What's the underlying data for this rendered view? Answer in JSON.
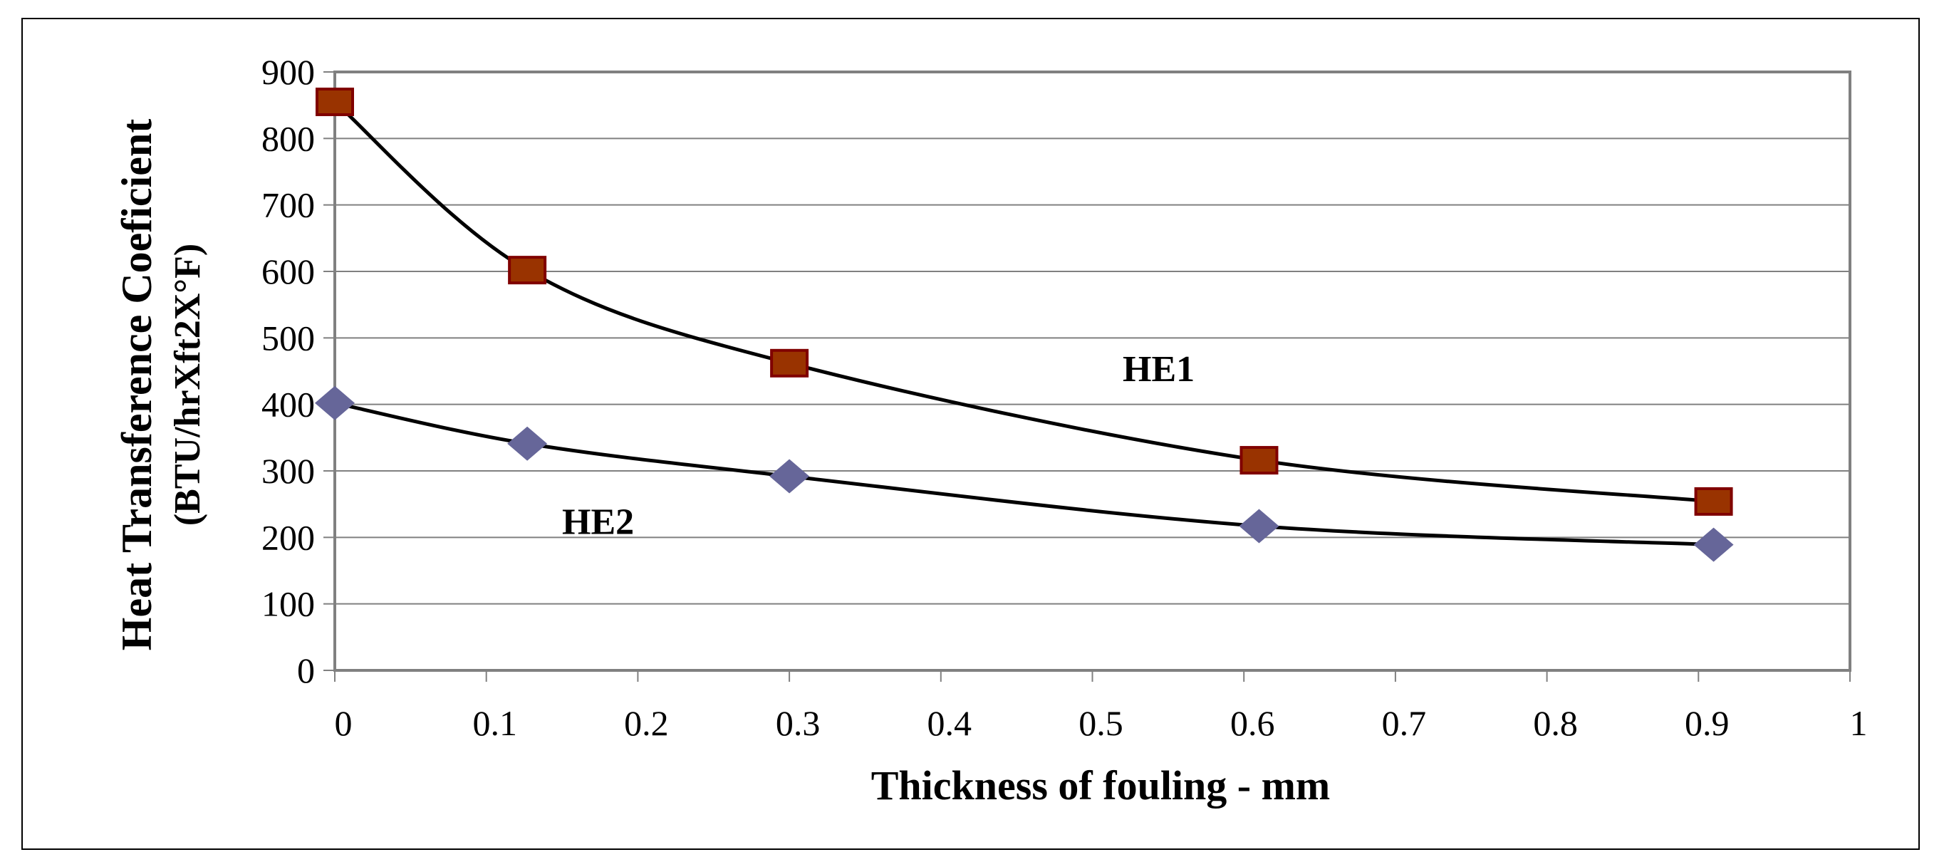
{
  "chart_data": {
    "type": "line",
    "title": "",
    "xlabel": "Thickness of fouling - mm",
    "ylabel_line1": "Heat Transference Coeficient",
    "ylabel_line2": "(BTU/hrXft2X°F)",
    "xlim": [
      0,
      1
    ],
    "ylim": [
      0,
      900
    ],
    "xticks": [
      "0",
      "0.1",
      "0.2",
      "0.3",
      "0.4",
      "0.5",
      "0.6",
      "0.7",
      "0.8",
      "0.9",
      "1"
    ],
    "yticks": [
      "0",
      "100",
      "200",
      "300",
      "400",
      "500",
      "600",
      "700",
      "800",
      "900"
    ],
    "grid": "horizontal",
    "legend": "none",
    "series": [
      {
        "name": "HE1",
        "marker": "square",
        "color": "#993300",
        "edge": "#800000",
        "x": [
          0,
          0.127,
          0.3,
          0.61,
          0.91
        ],
        "y": [
          855,
          602,
          462,
          316,
          254
        ]
      },
      {
        "name": "HE2",
        "marker": "diamond",
        "color": "#666699",
        "edge": "#666699",
        "x": [
          0,
          0.127,
          0.3,
          0.61,
          0.91
        ],
        "y": [
          402,
          341,
          292,
          217,
          189
        ]
      }
    ],
    "annotations": [
      {
        "text": "HE1",
        "x": 0.52,
        "y": 435
      },
      {
        "text": "HE2",
        "x": 0.15,
        "y": 205
      }
    ]
  }
}
